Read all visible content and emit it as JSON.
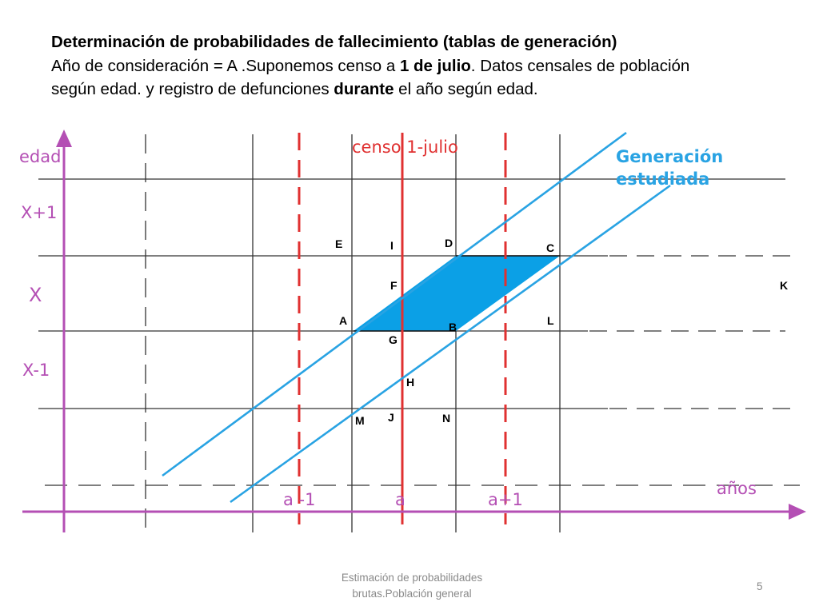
{
  "header": {
    "title": "Determinación de probabilidades de fallecimiento (tablas de generación)",
    "line2_a": "Año de consideración = A .Suponemos  censo a ",
    "line2_b": "1 de julio",
    "line2_c": ". Datos censales de población",
    "line3_a": "según edad. y registro de defunciones ",
    "line3_b": "durante",
    "line3_c": " el año según edad."
  },
  "diagram": {
    "y_axis_label": "edad",
    "age_labels": [
      "X+1",
      "X",
      "X-1"
    ],
    "x_axis_label": "años",
    "year_labels": [
      "a -1",
      "a",
      "a+1"
    ],
    "census_label": "censo 1-julio",
    "generation_label_line1": "Generación",
    "generation_label_line2": "estudiada",
    "points": [
      "E",
      "I",
      "D",
      "C",
      "F",
      "K",
      "A",
      "L",
      "B",
      "G",
      "H",
      "M",
      "J",
      "N"
    ],
    "colors": {
      "axis": "#b44fb4",
      "census": "#e03131",
      "generation": "#29a3e3",
      "region_fill": "#0ba0e6"
    }
  },
  "footer": {
    "note_line1": "Estimación de probabilidades",
    "note_line2": "brutas.Población general",
    "page_number": "5"
  }
}
